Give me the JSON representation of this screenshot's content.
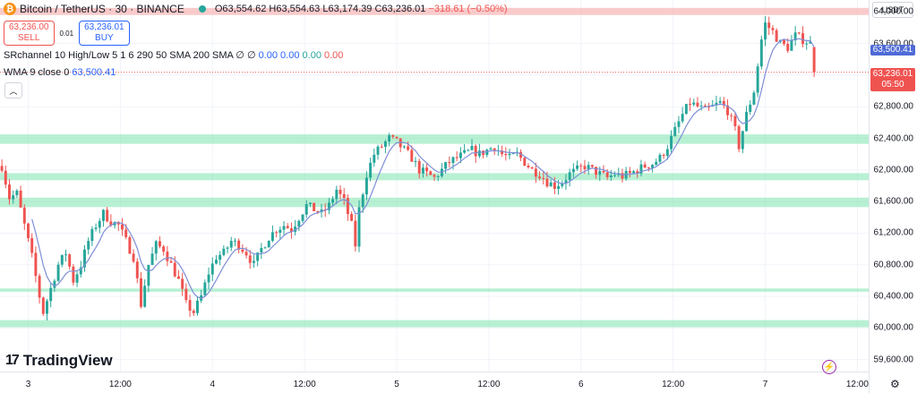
{
  "header": {
    "symbol": "Bitcoin / TetherUS · 30 · BINANCE",
    "coin_icon": "bitcoin-icon",
    "open": "O63,554.62",
    "high": "H63,554.63",
    "low": "L63,174.39",
    "close": "C63,236.01",
    "change": "−318.61 (−0.50%)"
  },
  "trade": {
    "sell_price": "63,236.00",
    "sell_label": "SELL",
    "spread": "0.01",
    "buy_price": "63,236.01",
    "buy_label": "BUY"
  },
  "indicators": {
    "sr_label": "SRchannel 10 High/Low 5 1 6 290 50 SMA 200 SMA",
    "sr_values": [
      "∅",
      "∅",
      "0.00",
      "0.00",
      "0.00",
      "0.00"
    ],
    "sr_value_colors": [
      "#131722",
      "#131722",
      "#2962ff",
      "#2962ff",
      "#26a69a",
      "#ef5350"
    ],
    "wma_label": "WMA 9 close 0",
    "wma_value": "63,500.41"
  },
  "currency_button": "USDT",
  "brand": "TradingView",
  "price_labels": {
    "wma": "63,500.41",
    "last": "63,236.01",
    "countdown": "05:50"
  },
  "colors": {
    "up": "#26a69a",
    "down": "#ef5350",
    "wma": "#7e8ed6",
    "sr_support": "#89e6b6",
    "sr_resistance": "#f7a8a8"
  },
  "chart_data": {
    "type": "candlestick",
    "interval": "30",
    "ylim": [
      59450,
      64150
    ],
    "y_ticks": [
      "59,600.00",
      "60,000.00",
      "60,400.00",
      "60,800.00",
      "61,200.00",
      "61,600.00",
      "62,000.00",
      "62,400.00",
      "62,800.00",
      "63,200.00",
      "63,600.00",
      "64,000.00"
    ],
    "y_tick_values": [
      59600,
      60000,
      60400,
      60800,
      61200,
      61600,
      62000,
      62400,
      62800,
      63200,
      63600,
      64000
    ],
    "x_ticks": [
      "3",
      "12:00",
      "4",
      "12:00",
      "5",
      "12:00",
      "6",
      "12:00",
      "7",
      "12:00"
    ],
    "x_tick_positions": [
      2.0,
      26.5,
      51.0,
      75.5,
      100.0,
      124.5,
      149.0,
      173.5,
      198.0,
      222.5
    ],
    "x_range": [
      -5.5,
      225.5
    ],
    "last_index": 211,
    "zones": [
      {
        "kind": "resistance",
        "low": 63960,
        "high": 64050
      },
      {
        "kind": "support",
        "low": 62330,
        "high": 62450
      },
      {
        "kind": "support",
        "low": 61870,
        "high": 61960
      },
      {
        "kind": "support",
        "low": 61530,
        "high": 61650
      },
      {
        "kind": "support",
        "low": 60460,
        "high": 60500
      },
      {
        "kind": "support",
        "low": 60010,
        "high": 60100
      }
    ],
    "close_path": [
      [
        -5,
        62050
      ],
      [
        -3,
        61650
      ],
      [
        -1,
        61700
      ],
      [
        1,
        61300
      ],
      [
        3,
        60900
      ],
      [
        5,
        60400
      ],
      [
        6,
        60200
      ],
      [
        8,
        60500
      ],
      [
        10,
        60800
      ],
      [
        12,
        60950
      ],
      [
        14,
        60600
      ],
      [
        16,
        60800
      ],
      [
        18,
        61100
      ],
      [
        20,
        61300
      ],
      [
        22,
        61450
      ],
      [
        24,
        61350
      ],
      [
        26,
        61300
      ],
      [
        28,
        61100
      ],
      [
        30,
        60900
      ],
      [
        32,
        60300
      ],
      [
        34,
        60800
      ],
      [
        36,
        61050
      ],
      [
        38,
        61000
      ],
      [
        40,
        60800
      ],
      [
        42,
        60600
      ],
      [
        44,
        60300
      ],
      [
        46,
        60200
      ],
      [
        48,
        60400
      ],
      [
        50,
        60700
      ],
      [
        52,
        60900
      ],
      [
        54,
        60950
      ],
      [
        56,
        61100
      ],
      [
        58,
        61050
      ],
      [
        60,
        60950
      ],
      [
        62,
        60800
      ],
      [
        64,
        61000
      ],
      [
        66,
        61150
      ],
      [
        68,
        61250
      ],
      [
        70,
        61300
      ],
      [
        72,
        61250
      ],
      [
        74,
        61400
      ],
      [
        76,
        61550
      ],
      [
        78,
        61500
      ],
      [
        80,
        61450
      ],
      [
        82,
        61550
      ],
      [
        84,
        61750
      ],
      [
        86,
        61600
      ],
      [
        88,
        61300
      ],
      [
        89,
        61050
      ],
      [
        90,
        61500
      ],
      [
        92,
        61950
      ],
      [
        94,
        62200
      ],
      [
        96,
        62300
      ],
      [
        98,
        62400
      ],
      [
        100,
        62350
      ],
      [
        102,
        62250
      ],
      [
        104,
        62150
      ],
      [
        106,
        62000
      ],
      [
        108,
        61950
      ],
      [
        110,
        61900
      ],
      [
        112,
        62000
      ],
      [
        114,
        62100
      ],
      [
        116,
        62150
      ],
      [
        118,
        62200
      ],
      [
        120,
        62250
      ],
      [
        122,
        62200
      ],
      [
        124,
        62250
      ],
      [
        126,
        62300
      ],
      [
        128,
        62200
      ],
      [
        130,
        62150
      ],
      [
        132,
        62200
      ],
      [
        134,
        62100
      ],
      [
        136,
        62000
      ],
      [
        138,
        61950
      ],
      [
        140,
        61850
      ],
      [
        142,
        61800
      ],
      [
        144,
        61850
      ],
      [
        146,
        61950
      ],
      [
        148,
        62000
      ],
      [
        150,
        62050
      ],
      [
        152,
        62000
      ],
      [
        154,
        61950
      ],
      [
        156,
        61900
      ],
      [
        158,
        61950
      ],
      [
        160,
        61920
      ],
      [
        162,
        61950
      ],
      [
        164,
        62000
      ],
      [
        166,
        62050
      ],
      [
        168,
        62080
      ],
      [
        170,
        62150
      ],
      [
        172,
        62300
      ],
      [
        174,
        62500
      ],
      [
        176,
        62700
      ],
      [
        178,
        62850
      ],
      [
        180,
        62800
      ],
      [
        182,
        62750
      ],
      [
        184,
        62800
      ],
      [
        186,
        62850
      ],
      [
        188,
        62750
      ],
      [
        190,
        62500
      ],
      [
        191,
        62300
      ],
      [
        193,
        62700
      ],
      [
        195,
        63000
      ],
      [
        197,
        63650
      ],
      [
        198,
        63850
      ],
      [
        200,
        63750
      ],
      [
        202,
        63600
      ],
      [
        204,
        63550
      ],
      [
        206,
        63700
      ],
      [
        208,
        63650
      ],
      [
        210,
        63600
      ],
      [
        211,
        63236.01
      ]
    ],
    "ohlc_last": {
      "open": 63554.62,
      "high": 63554.63,
      "low": 63174.39,
      "close": 63236.01
    },
    "series": [
      {
        "name": "WMA 9 close 0",
        "last": 63500.41
      }
    ]
  }
}
